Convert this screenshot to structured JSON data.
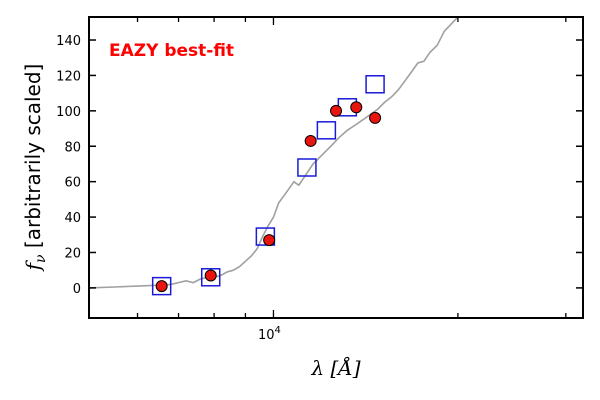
{
  "chart_data": {
    "type": "scatter",
    "xlabel": "λ [Å]",
    "ylabel_symbol": "f",
    "ylabel_subscript": "ν",
    "ylabel_rest": " [arbitrarily scaled]",
    "xscale": "log",
    "xlim": [
      5000,
      32000
    ],
    "ylim": [
      -17,
      153
    ],
    "x_tick_labels": [
      {
        "value": 10000,
        "base": "10",
        "exp": "4"
      }
    ],
    "y_ticks": [
      0,
      20,
      40,
      60,
      80,
      100,
      120,
      140
    ],
    "annotation": {
      "text": "EAZY best-fit",
      "color": "#ff0000",
      "position": "top-left"
    },
    "colors": {
      "observed": "#e8140f",
      "model_box": "#1a1adb",
      "template": "#a0a0a0"
    },
    "series": [
      {
        "kind": "template-line",
        "x": [
          5000,
          5500,
          6000,
          6500,
          6800,
          7000,
          7200,
          7400,
          7600,
          7800,
          8000,
          8200,
          8400,
          8600,
          8800,
          9000,
          9200,
          9400,
          9600,
          9800,
          10000,
          10200,
          10400,
          10600,
          10800,
          11000,
          11300,
          11600,
          12000,
          12400,
          12800,
          13200,
          13600,
          14000,
          14400,
          14800,
          15200,
          15600,
          16000,
          16400,
          16800,
          17200,
          17600,
          18000,
          18500,
          19000,
          19500,
          20000
        ],
        "y": [
          0,
          0.5,
          1,
          1.5,
          2,
          3,
          4,
          3,
          5,
          6,
          6,
          7,
          9,
          10,
          12,
          15,
          18,
          22,
          29,
          35,
          40,
          48,
          52,
          56,
          60,
          58,
          64,
          70,
          75,
          80,
          85,
          89,
          92,
          95,
          98,
          101,
          105,
          108,
          112,
          117,
          122,
          127,
          128,
          133,
          137,
          145,
          149,
          153
        ]
      },
      {
        "kind": "observed-points",
        "x": [
          6570,
          7900,
          9840,
          11500,
          12650,
          13650,
          14650
        ],
        "y": [
          1,
          7,
          27,
          83,
          100,
          102,
          96
        ]
      },
      {
        "kind": "model-boxes",
        "x": [
          6570,
          7900,
          9700,
          11340,
          12200,
          13200,
          14650
        ],
        "y": [
          1,
          6,
          29,
          68,
          89,
          102,
          115
        ]
      }
    ]
  }
}
